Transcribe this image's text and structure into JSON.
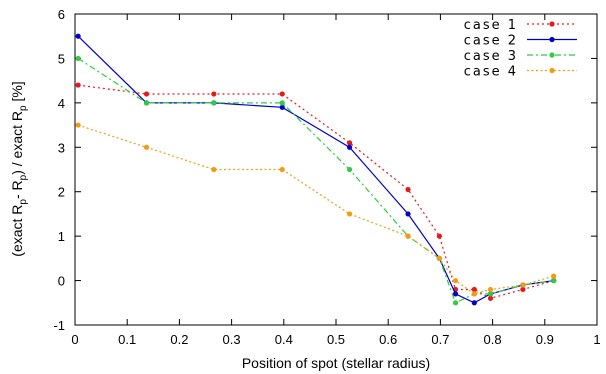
{
  "chart_data": {
    "type": "line",
    "title": "",
    "xlabel": "Position of spot (stellar radius)",
    "ylabel": "(exact Rₚ - Rₚ) / exact Rₚ [%]",
    "ylabel_parts": {
      "a": "(exact R",
      "b": "- R",
      "c": ") / exact R",
      "d": " [%]",
      "sub": "p"
    },
    "xlim": [
      0,
      1
    ],
    "ylim": [
      -1,
      6
    ],
    "xticks": [
      "0",
      "0.1",
      "0.2",
      "0.3",
      "0.4",
      "0.5",
      "0.6",
      "0.7",
      "0.8",
      "0.9",
      "1"
    ],
    "yticks": [
      "-1",
      "0",
      "1",
      "2",
      "3",
      "4",
      "5",
      "6"
    ],
    "grid": false,
    "legend_position": "top-right",
    "series": [
      {
        "name": "case 1",
        "color": "#e41a1c",
        "dash": "dotted",
        "x": [
          0.006,
          0.137,
          0.266,
          0.397,
          0.526,
          0.638,
          0.698,
          0.729,
          0.765,
          0.796,
          0.858,
          0.917
        ],
        "y": [
          4.4,
          4.2,
          4.2,
          4.2,
          3.1,
          2.05,
          1.0,
          -0.2,
          -0.2,
          -0.4,
          -0.2,
          0.0
        ]
      },
      {
        "name": "case 2",
        "color": "#0000cc",
        "dash": "solid",
        "x": [
          0.006,
          0.137,
          0.266,
          0.397,
          0.526,
          0.638,
          0.698,
          0.729,
          0.765,
          0.796,
          0.858,
          0.917
        ],
        "y": [
          5.5,
          4.0,
          4.0,
          3.9,
          3.0,
          1.5,
          0.5,
          -0.3,
          -0.5,
          -0.3,
          -0.1,
          0.0
        ]
      },
      {
        "name": "case 3",
        "color": "#2ecc40",
        "dash": "dashdot",
        "x": [
          0.006,
          0.137,
          0.266,
          0.397,
          0.526,
          0.638,
          0.698,
          0.729,
          0.765,
          0.796,
          0.858,
          0.917
        ],
        "y": [
          5.0,
          4.0,
          4.0,
          4.0,
          2.5,
          1.0,
          0.5,
          -0.5,
          -0.3,
          -0.3,
          -0.1,
          0.0
        ]
      },
      {
        "name": "case 4",
        "color": "#f39c12",
        "dash": "dotted-fine",
        "x": [
          0.006,
          0.137,
          0.266,
          0.397,
          0.526,
          0.638,
          0.698,
          0.729,
          0.765,
          0.796,
          0.858,
          0.917
        ],
        "y": [
          3.5,
          3.0,
          2.5,
          2.5,
          1.5,
          1.0,
          0.5,
          0.0,
          -0.3,
          -0.2,
          -0.1,
          0.1
        ]
      }
    ]
  }
}
